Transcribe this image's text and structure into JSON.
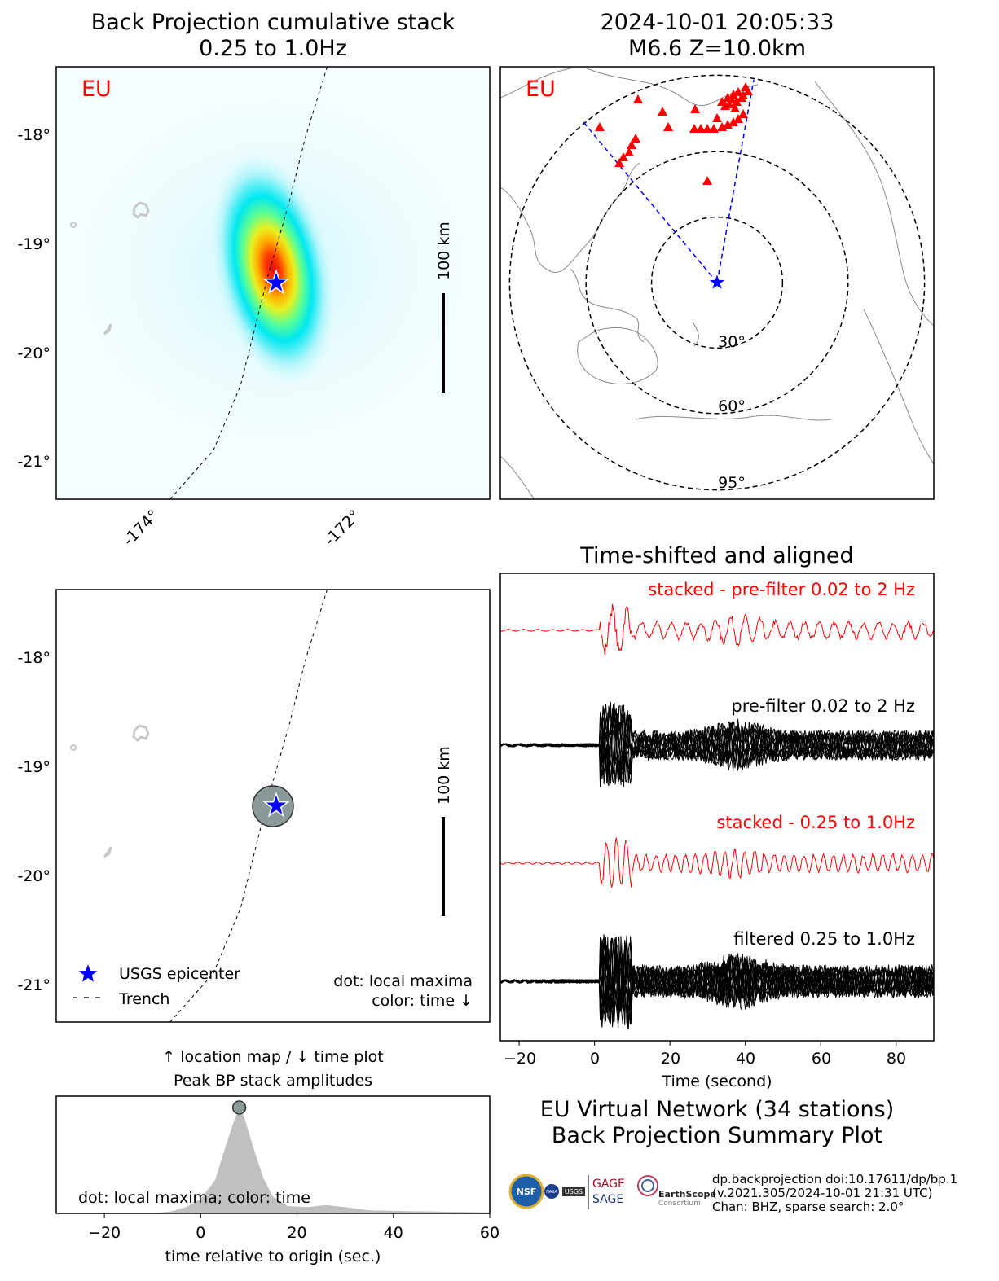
{
  "bp_map": {
    "title_line1": "Back Projection cumulative stack",
    "title_line2": "0.25 to 1.0Hz",
    "network_label": "EU",
    "lat_ticks": [
      "-18°",
      "-19°",
      "-20°",
      "-21°"
    ],
    "lon_ticks": [
      "-174°",
      "-172°"
    ],
    "scale_label": "100 km"
  },
  "event_map": {
    "title_line1": "2024-10-01 20:05:33",
    "title_line2": "M6.6 Z=10.0km",
    "network_label": "EU",
    "distance_rings": [
      "30°",
      "60°",
      "95°"
    ]
  },
  "location_map": {
    "lat_ticks": [
      "-18°",
      "-19°",
      "-20°",
      "-21°"
    ],
    "scale_label": "100 km",
    "legend_epicenter": "USGS epicenter",
    "legend_trench": "Trench",
    "note_line1": "dot: local maxima",
    "note_line2": "color: time ↓",
    "caption_line1": "↑ location map / ↓ time plot",
    "caption_line2": "Peak BP stack amplitudes"
  },
  "waveforms": {
    "title": "Time-shifted and aligned",
    "trace_labels": [
      "stacked - pre-filter 0.02 to 2 Hz",
      "pre-filter 0.02 to 2 Hz",
      "stacked - 0.25 to 1.0Hz",
      "filtered 0.25 to 1.0Hz"
    ],
    "xlabel": "Time (second)",
    "x_ticks": [
      "−20",
      "0",
      "20",
      "40",
      "60",
      "80"
    ]
  },
  "summary": {
    "line1": "EU Virtual Network (34 stations)",
    "line2": "Back Projection Summary Plot",
    "info_line1": "dp.backprojection doi:10.17611/dp/bp.1",
    "info_line2": "(v.2021.305/2024-10-01 21:31 UTC)",
    "info_line3": "Chan: BHZ, sparse search: 2.0°",
    "logo_gage": "GAGE",
    "logo_sage": "SAGE",
    "logo_earthscope": "EarthScope",
    "logo_consortium": "Consortium",
    "logo_nsf": "NSF",
    "logo_nasa": "NASA",
    "logo_usgs": "USGS"
  },
  "chart_data": [
    {
      "type": "heatmap",
      "title": "Back Projection cumulative stack",
      "subtitle": "0.25 to 1.0Hz",
      "xlim": [
        -175.0,
        -171.0
      ],
      "ylim": [
        -21.35,
        -17.35
      ],
      "peak": {
        "lon": -172.97,
        "lat": -19.35
      },
      "epicenter": {
        "lon": -172.97,
        "lat": -19.35
      },
      "trench": [
        [
          -172.5,
          -17.35
        ],
        [
          -172.7,
          -18.0
        ],
        [
          -172.85,
          -18.6
        ],
        [
          -173.05,
          -19.3
        ],
        [
          -173.3,
          -20.3
        ],
        [
          -173.55,
          -20.9
        ],
        [
          -173.95,
          -21.35
        ]
      ],
      "colors": {
        "low": "#e6ffff",
        "mid": "#00e5ee",
        "high": "#ff0000"
      }
    },
    {
      "type": "scatter",
      "title": "2024-10-01 20:05:33",
      "subtitle": "M6.6 Z=10.0km",
      "distance_rings_deg": [
        30,
        60,
        95
      ],
      "station_marker": "red triangle",
      "station_count": 34,
      "epicenter_marker": "blue star"
    },
    {
      "type": "line",
      "title": "Time-shifted and aligned",
      "xlabel": "Time (second)",
      "xlim": [
        -25,
        90
      ],
      "series": [
        {
          "name": "stacked - pre-filter 0.02 to 2 Hz",
          "color": "#ff0000"
        },
        {
          "name": "pre-filter 0.02 to 2 Hz",
          "color": "#000000"
        },
        {
          "name": "stacked - 0.25 to 1.0Hz",
          "color": "#ff0000"
        },
        {
          "name": "filtered 0.25 to 1.0Hz",
          "color": "#000000"
        }
      ]
    },
    {
      "type": "scatter",
      "title": "",
      "xlim": [
        -172.0,
        -171.0
      ],
      "ylim": [
        -21.35,
        -17.35
      ],
      "points": [
        {
          "lon": -172.97,
          "lat": -19.35,
          "time": 8
        }
      ],
      "legend": [
        "USGS epicenter",
        "Trench"
      ]
    },
    {
      "type": "area",
      "title": "",
      "xlabel": "time relative to origin (sec.)",
      "xlim": [
        -30,
        60
      ],
      "x_ticks": [
        -20,
        0,
        20,
        40,
        60
      ],
      "x": [
        -30,
        -10,
        -6,
        -3,
        0,
        3,
        5,
        7,
        8,
        9,
        11,
        13,
        15,
        18,
        22,
        26,
        30,
        35,
        45,
        60
      ],
      "values": [
        0,
        0,
        0.02,
        0.06,
        0.14,
        0.32,
        0.62,
        0.9,
        1.0,
        0.93,
        0.62,
        0.34,
        0.16,
        0.07,
        0.06,
        0.08,
        0.06,
        0.03,
        0.02,
        0.01
      ],
      "peak_time": 8,
      "note": "dot: local maxima; color: time"
    }
  ]
}
